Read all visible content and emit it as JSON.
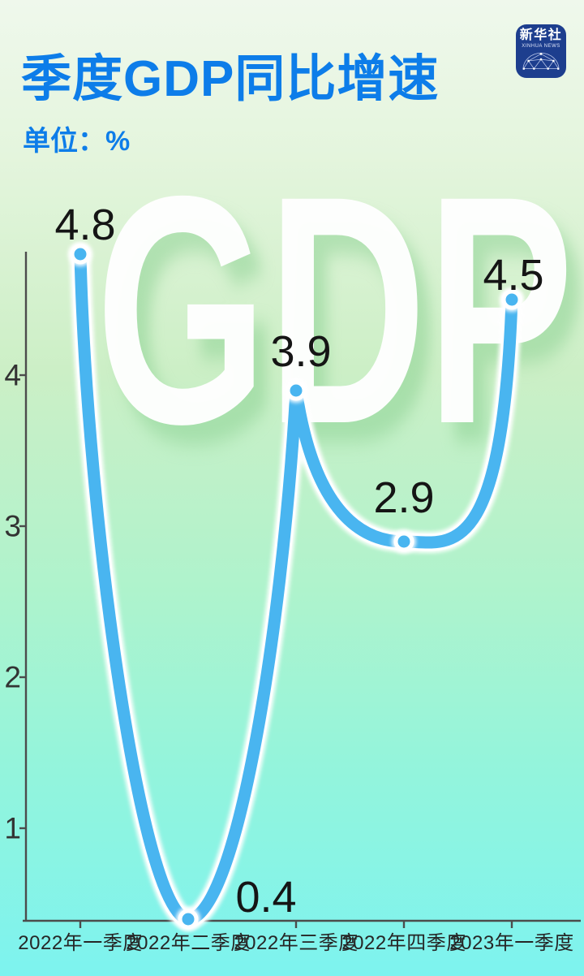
{
  "header": {
    "title": "季度GDP同比增速",
    "unit_label": "单位：%",
    "title_color": "#0d7de9"
  },
  "logo": {
    "name_cn": "新华社",
    "name_en": "XINHUA NEWS",
    "bg_color": "#1d3e8e"
  },
  "watermark_text": "GDP",
  "colors": {
    "line_blue": "#49b5f0",
    "marker_ring": "#ffffff",
    "label_dark": "#151515",
    "axis_gray": "#4c4c4c",
    "watermark_white": "#ffffff",
    "watermark_shadow": "#86cf8e",
    "bg_gradient": [
      "#eff8ec",
      "#e4f5dd",
      "#ccefc6",
      "#aff3cc",
      "#93f4dc",
      "#7df3ef"
    ]
  },
  "chart_data": {
    "type": "line",
    "title": "季度GDP同比增速",
    "ylabel": "单位：%",
    "categories": [
      "2022年一季度",
      "2022年二季度",
      "2022年三季度",
      "2022年四季度",
      "2023年一季度"
    ],
    "values": [
      4.8,
      0.4,
      3.9,
      2.9,
      4.5
    ],
    "point_labels": [
      "4.8",
      "0.4",
      "3.9",
      "2.9",
      "4.5"
    ],
    "yticks": [
      1,
      2,
      3,
      4
    ],
    "ylim": [
      0.39,
      4.82
    ],
    "grid": false,
    "legend": false,
    "smooth": true,
    "marker_style": "filled-circle-white-ring",
    "line_color": "#49b5f0"
  }
}
